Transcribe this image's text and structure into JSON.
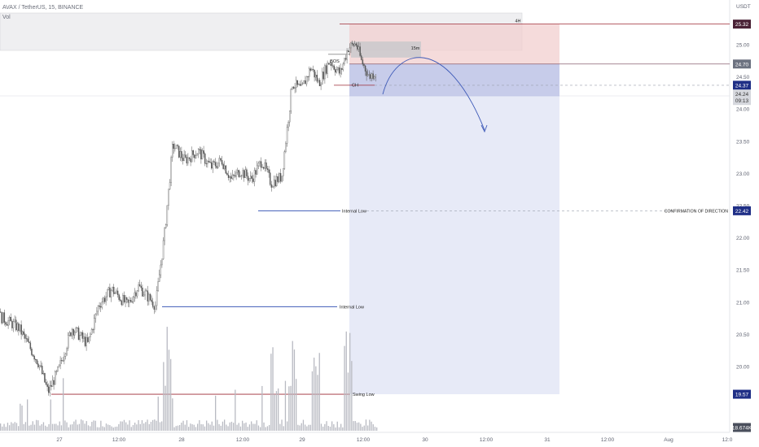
{
  "legend": {
    "symbol_line": "AVAX / TetherUS, 15, BINANCE",
    "indicator": "Vol"
  },
  "chart_data": {
    "type": "candlestick",
    "symbol": "AVAX / TetherUS",
    "interval": "15",
    "exchange": "BINANCE",
    "currency_label": "USDT",
    "x_ticks": [
      "27",
      "12:00",
      "28",
      "12:00",
      "29",
      "12:00",
      "30",
      "12:00",
      "31",
      "12:00",
      "Aug",
      "12:0"
    ],
    "y_ticks": [
      "25.00",
      "24.50",
      "24.00",
      "23.50",
      "23.00",
      "22.50",
      "22.00",
      "21.50",
      "21.00",
      "20.50",
      "20.00"
    ],
    "ylim": [
      19.2,
      25.6
    ],
    "price_path": [
      [
        0,
        20.85
      ],
      [
        2,
        20.6
      ],
      [
        3.5,
        20.05
      ],
      [
        4.2,
        19.6
      ],
      [
        5,
        19.95
      ],
      [
        6,
        20.6
      ],
      [
        7.2,
        20.35
      ],
      [
        8,
        20.95
      ],
      [
        9,
        21.2
      ],
      [
        10.2,
        20.95
      ],
      [
        11,
        21.25
      ],
      [
        12.3,
        20.95
      ],
      [
        13,
        22.1
      ],
      [
        13.6,
        23.45
      ],
      [
        14.5,
        23.2
      ],
      [
        15.5,
        23.35
      ],
      [
        16.5,
        23.1
      ],
      [
        17.3,
        23.2
      ],
      [
        18,
        22.9
      ],
      [
        18.7,
        23.05
      ],
      [
        19.5,
        22.9
      ],
      [
        20.3,
        23.2
      ],
      [
        21,
        22.85
      ],
      [
        21.8,
        22.95
      ],
      [
        22.6,
        24.4
      ],
      [
        23.3,
        24.3
      ],
      [
        24,
        24.65
      ],
      [
        24.6,
        24.4
      ],
      [
        25.4,
        24.75
      ],
      [
        26.2,
        24.55
      ],
      [
        26.8,
        24.95
      ],
      [
        27.4,
        25.02
      ],
      [
        27.8,
        24.75
      ],
      [
        28.4,
        24.5
      ],
      [
        29,
        24.6
      ],
      [
        29.6,
        24.24
      ]
    ],
    "volume_label": "18.674K",
    "volume_spike_bars": [
      13.2,
      21.3,
      22.6,
      24.4,
      26.8
    ],
    "price_badges": [
      {
        "value": "25.32",
        "color": "#4a2236"
      },
      {
        "value": "24.70",
        "color": "#6c7280"
      },
      {
        "value": "24.37",
        "color": "#1f2f86"
      },
      {
        "value": "24.24",
        "color": "#d6d8de"
      },
      {
        "value": "09:13",
        "color": "#d6d8de"
      },
      {
        "value": "22.42",
        "color": "#1f2f86"
      },
      {
        "value": "19.57",
        "color": "#1f2f86"
      },
      {
        "value": "18.674K",
        "color": "#4a4f5c"
      }
    ],
    "levels": [
      {
        "label": "4H",
        "price": 25.32,
        "color": "#9e2a35"
      },
      {
        "label": "15m",
        "price": 24.95,
        "color": "#555"
      },
      {
        "label": "BOS",
        "price": 25.02,
        "color": "#333"
      },
      {
        "label": "CH",
        "price": 24.37,
        "color": "#333"
      },
      {
        "label": "Internal Low",
        "price": 22.42,
        "color": "#3f5bb8"
      },
      {
        "label": "CONFIRMATION OF DIRECTION",
        "price": 22.42,
        "color": "#333"
      },
      {
        "label": "Internal Low",
        "price": 20.93,
        "color": "#3f5bb8"
      },
      {
        "label": "Swing Low",
        "price": 19.57,
        "color": "#9e2a35"
      }
    ],
    "position": {
      "entry": 24.7,
      "stop": 25.32,
      "target": 19.57,
      "colors": {
        "risk": "#f2cfcf",
        "reward": "#c9d1ee"
      }
    },
    "grid": false
  }
}
